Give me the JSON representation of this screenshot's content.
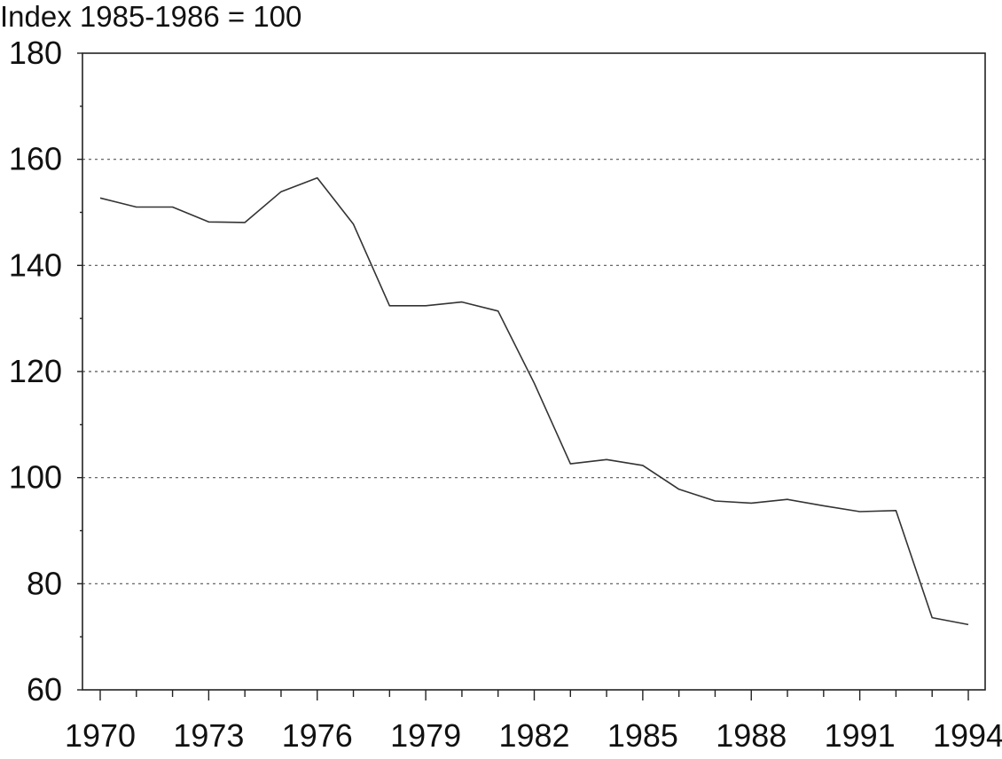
{
  "chart_data": {
    "type": "line",
    "title": "",
    "ylabel": "Index 1985-1986 = 100",
    "xlabel": "",
    "xlim": [
      1970,
      1994
    ],
    "ylim": [
      60,
      180
    ],
    "x_ticks_major": [
      1970,
      1973,
      1976,
      1979,
      1982,
      1985,
      1988,
      1991,
      1994
    ],
    "y_ticks": [
      60,
      80,
      100,
      120,
      140,
      160,
      180
    ],
    "grid": "horizontal dotted",
    "legend": "none",
    "line_color": "#333333",
    "series": [
      {
        "x": [
          1970,
          1971,
          1972,
          1973,
          1974,
          1975,
          1976,
          1977,
          1978,
          1979,
          1980,
          1981,
          1982,
          1983,
          1984,
          1985,
          1986,
          1987,
          1988,
          1989,
          1990,
          1991,
          1992,
          1993,
          1994
        ],
        "values": [
          152.7,
          151.0,
          151.0,
          148.2,
          148.1,
          153.9,
          156.5,
          147.8,
          132.4,
          132.4,
          133.1,
          131.4,
          117.8,
          102.6,
          103.4,
          102.3,
          97.8,
          95.6,
          95.2,
          95.9,
          94.7,
          93.6,
          93.8,
          73.6,
          72.3
        ]
      }
    ]
  }
}
